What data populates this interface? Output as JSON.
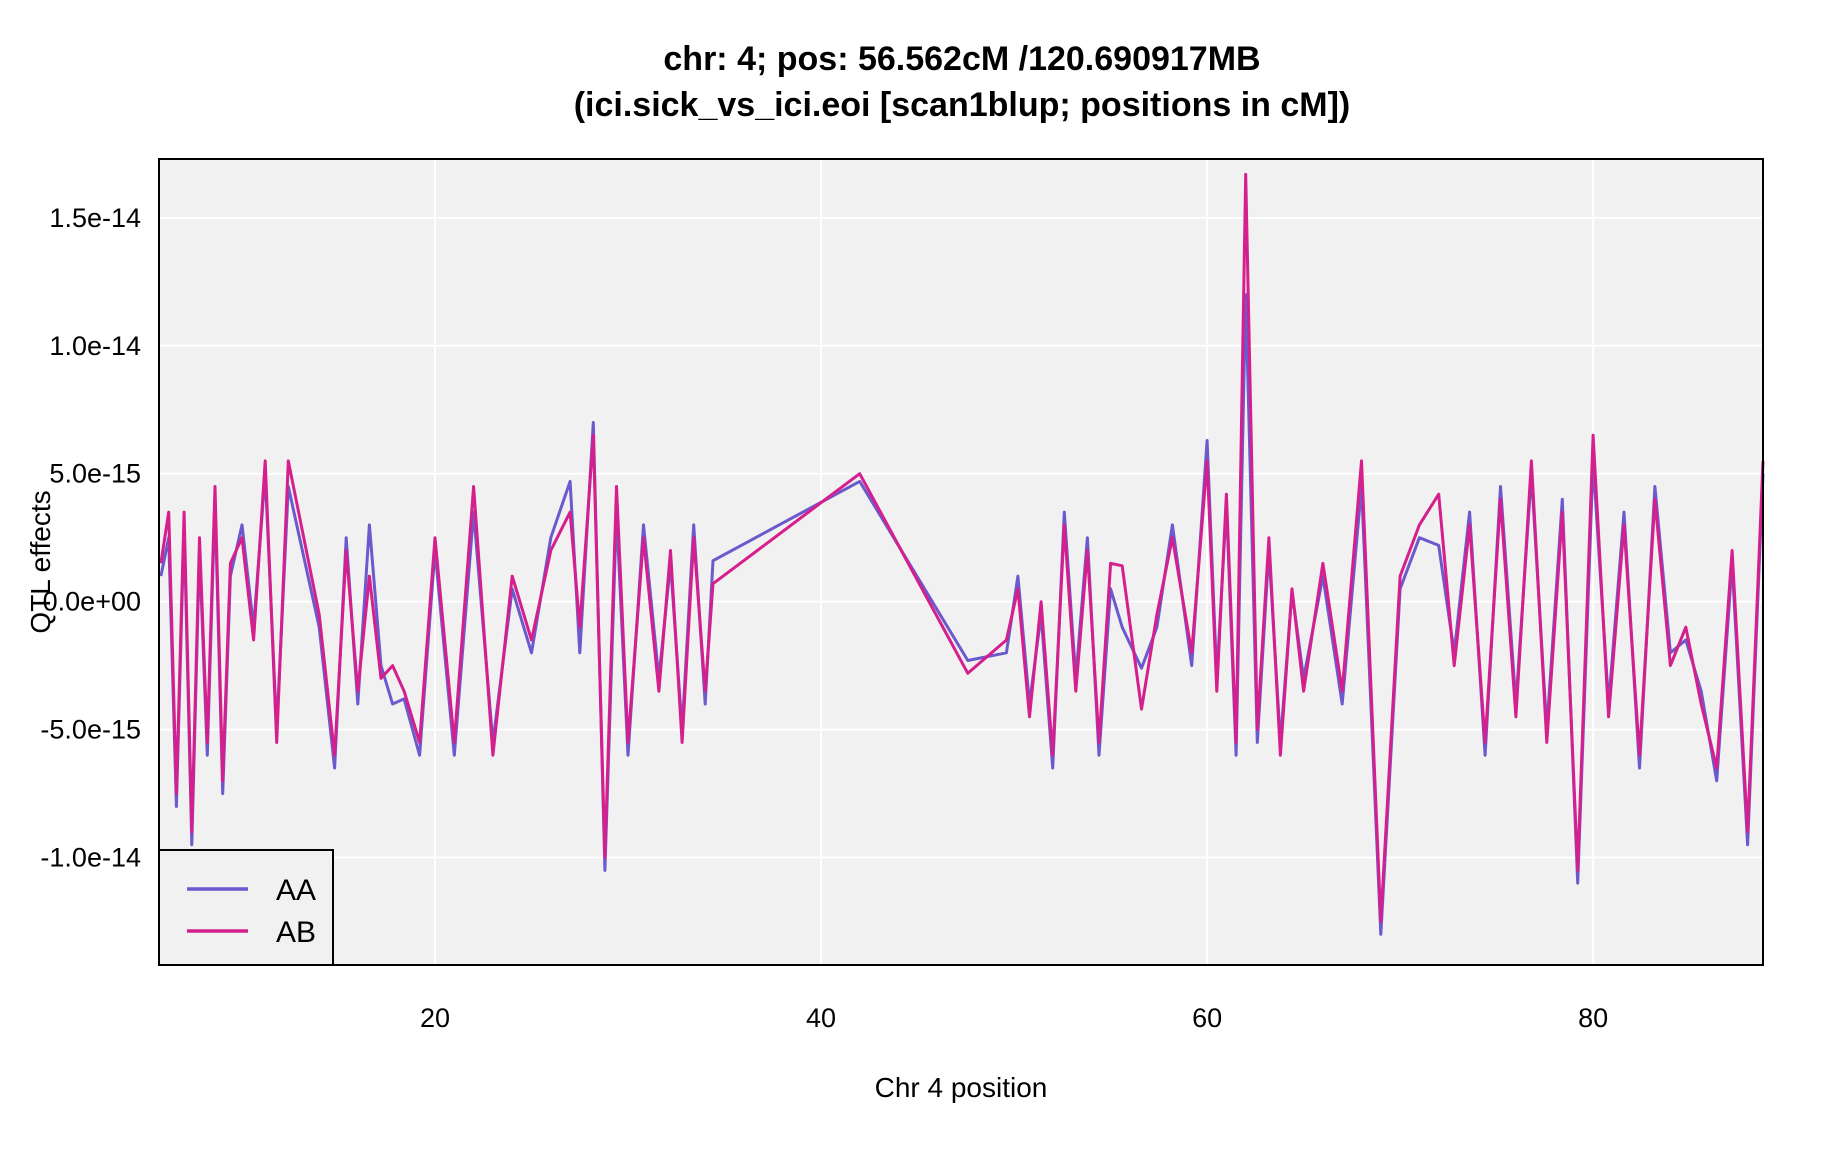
{
  "chart_data": {
    "type": "line",
    "title_line1": "chr: 4; pos: 56.562cM /120.690917MB",
    "title_line2": "(ici.sick_vs_ici.eoi [scan1blup; positions in cM])",
    "xlabel": "Chr 4 position",
    "ylabel": "QTL effects",
    "xlim": [
      5.7,
      88.8
    ],
    "ylim": [
      -1.42e-14,
      1.73e-14
    ],
    "x_ticks": [
      20,
      40,
      60,
      80
    ],
    "x_tick_labels": [
      "20",
      "40",
      "60",
      "80"
    ],
    "y_ticks": [
      1.5e-14,
      1e-14,
      5e-15,
      0,
      -5e-15,
      -1e-14
    ],
    "y_tick_labels": [
      "1.5e-14",
      "1.0e-14",
      "5.0e-15",
      "0.0e+00",
      "-5.0e-15",
      "-1.0e-14"
    ],
    "grid": true,
    "legend_position": "bottom-left",
    "colors": {
      "AA": "#6a5acd",
      "AB": "#d41f8c",
      "panel": "#f1f1f1",
      "grid": "#ffffff"
    },
    "series": [
      {
        "name": "AA",
        "x": [
          5.8,
          6.2,
          6.6,
          7.0,
          7.4,
          7.8,
          8.2,
          8.6,
          9.0,
          9.4,
          10.0,
          10.6,
          11.2,
          11.8,
          12.4,
          14.0,
          14.8,
          15.4,
          16.0,
          16.6,
          17.2,
          17.8,
          18.4,
          19.2,
          20.0,
          21.0,
          22.0,
          23.0,
          24.0,
          25.0,
          26.0,
          27.0,
          27.5,
          28.2,
          28.8,
          29.4,
          30.0,
          30.8,
          31.6,
          32.2,
          32.8,
          33.4,
          34.0,
          34.4,
          42.0,
          47.6,
          49.6,
          50.2,
          50.8,
          51.4,
          52.0,
          52.6,
          53.2,
          53.8,
          54.4,
          55.0,
          55.6,
          56.6,
          57.4,
          58.2,
          59.2,
          60.0,
          60.5,
          61.0,
          61.5,
          62.0,
          62.6,
          63.2,
          63.8,
          64.4,
          65.0,
          66.0,
          67.0,
          68.0,
          69.0,
          70.0,
          71.0,
          72.0,
          72.8,
          73.6,
          74.4,
          75.2,
          76.0,
          76.8,
          77.6,
          78.4,
          79.2,
          80.0,
          80.8,
          81.6,
          82.4,
          83.2,
          84.0,
          84.8,
          85.6,
          86.4,
          87.2,
          88.0,
          88.8
        ],
        "values": [
          1e-15,
          2.5e-15,
          -8e-15,
          3e-15,
          -9.5e-15,
          2e-15,
          -6e-15,
          4e-15,
          -7.5e-15,
          1e-15,
          3e-15,
          -1e-15,
          5e-15,
          -5e-15,
          4.5e-15,
          -1e-15,
          -6.5e-15,
          2.5e-15,
          -4e-15,
          3e-15,
          -2.5e-15,
          -4e-15,
          -3.8e-15,
          -6e-15,
          2e-15,
          -6e-15,
          3.5e-15,
          -5.5e-15,
          5e-16,
          -2e-15,
          2.5e-15,
          4.7e-15,
          -2e-15,
          7e-15,
          -1.05e-14,
          3.5e-15,
          -6e-15,
          3e-15,
          -3e-15,
          1.5e-15,
          -5e-15,
          3e-15,
          -4e-15,
          1.6e-15,
          4.7e-15,
          -2.3e-15,
          -2e-15,
          1e-15,
          -4e-15,
          -5e-16,
          -6.5e-15,
          3.5e-15,
          -3e-15,
          2.5e-15,
          -6e-15,
          5e-16,
          -1e-15,
          -2.6e-15,
          -1e-15,
          3e-15,
          -2.5e-15,
          6.3e-15,
          -3e-15,
          3.8e-15,
          -6e-15,
          1.2e-14,
          -5.5e-15,
          2e-15,
          -5.5e-15,
          4e-16,
          -3e-15,
          1e-15,
          -4e-15,
          4.5e-15,
          -1.3e-14,
          5e-16,
          2.5e-15,
          2.2e-15,
          -2e-15,
          3.5e-15,
          -6e-15,
          4.5e-15,
          -4e-15,
          5e-15,
          -5e-15,
          4e-15,
          -1.1e-14,
          5.5e-15,
          -4e-15,
          3.5e-15,
          -6.5e-15,
          4.5e-15,
          -2e-15,
          -1.5e-15,
          -3.5e-15,
          -7e-15,
          1.5e-15,
          -9.5e-15,
          5e-15
        ]
      },
      {
        "name": "AB",
        "x": [
          5.8,
          6.2,
          6.6,
          7.0,
          7.4,
          7.8,
          8.2,
          8.6,
          9.0,
          9.4,
          10.0,
          10.6,
          11.2,
          11.8,
          12.4,
          14.0,
          14.8,
          15.4,
          16.0,
          16.6,
          17.2,
          17.8,
          18.4,
          19.2,
          20.0,
          21.0,
          22.0,
          23.0,
          24.0,
          25.0,
          26.0,
          27.0,
          27.5,
          28.2,
          28.8,
          29.4,
          30.0,
          30.8,
          31.6,
          32.2,
          32.8,
          33.4,
          34.0,
          34.4,
          42.0,
          47.6,
          49.6,
          50.2,
          50.8,
          51.4,
          52.0,
          52.6,
          53.2,
          53.8,
          54.4,
          55.0,
          55.6,
          56.6,
          57.4,
          58.2,
          59.2,
          60.0,
          60.5,
          61.0,
          61.5,
          62.0,
          62.6,
          63.2,
          63.8,
          64.4,
          65.0,
          66.0,
          67.0,
          68.0,
          69.0,
          70.0,
          71.0,
          72.0,
          72.8,
          73.6,
          74.4,
          75.2,
          76.0,
          76.8,
          77.6,
          78.4,
          79.2,
          80.0,
          80.8,
          81.6,
          82.4,
          83.2,
          84.0,
          84.8,
          85.6,
          86.4,
          87.2,
          88.0,
          88.8
        ],
        "values": [
          1.5e-15,
          3.5e-15,
          -7.5e-15,
          3.5e-15,
          -9e-15,
          2.5e-15,
          -5.5e-15,
          4.5e-15,
          -7e-15,
          1.5e-15,
          2.5e-15,
          -1.5e-15,
          5.5e-15,
          -5.5e-15,
          5.5e-15,
          -5e-16,
          -6e-15,
          2e-15,
          -3.5e-15,
          1e-15,
          -3e-15,
          -2.5e-15,
          -3.5e-15,
          -5.5e-15,
          2.5e-15,
          -5.5e-15,
          4.5e-15,
          -6e-15,
          1e-15,
          -1.5e-15,
          2e-15,
          3.5e-15,
          -1e-15,
          6.5e-15,
          -1e-14,
          4.5e-15,
          -5.5e-15,
          2.5e-15,
          -3.5e-15,
          2e-15,
          -5.5e-15,
          2.5e-15,
          -3.5e-15,
          7e-16,
          5e-15,
          -2.8e-15,
          -1.5e-15,
          5e-16,
          -4.5e-15,
          0.0,
          -6e-15,
          3e-15,
          -3.5e-15,
          2e-15,
          -5.5e-15,
          1.5e-15,
          1.4e-15,
          -4.2e-15,
          -5e-16,
          2.5e-15,
          -2e-15,
          5.5e-15,
          -3.5e-15,
          4.2e-15,
          -5.5e-15,
          1.67e-14,
          -5e-15,
          2.5e-15,
          -6e-15,
          5e-16,
          -3.5e-15,
          1.5e-15,
          -3.5e-15,
          5.5e-15,
          -1.25e-14,
          1e-15,
          3e-15,
          4.2e-15,
          -2.5e-15,
          3e-15,
          -5.5e-15,
          4e-15,
          -4.5e-15,
          5.5e-15,
          -5.5e-15,
          3.5e-15,
          -1.05e-14,
          6.5e-15,
          -4.5e-15,
          3e-15,
          -6e-15,
          4e-15,
          -2.5e-15,
          -1e-15,
          -4e-15,
          -6.5e-15,
          2e-15,
          -9e-15,
          5.5e-15
        ]
      }
    ]
  }
}
